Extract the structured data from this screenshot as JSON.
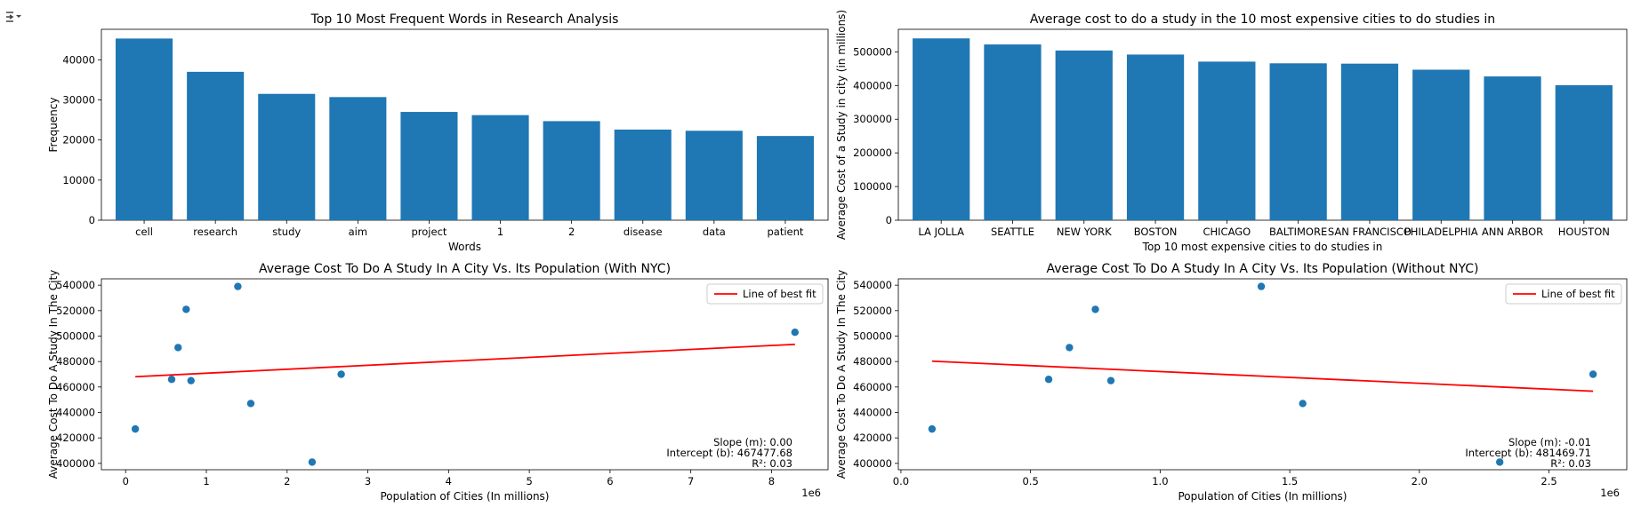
{
  "toolbar": {
    "icon": "output-toggle-icon"
  },
  "chart_data": [
    {
      "type": "bar",
      "title": "Top 10 Most Frequent Words in Research Analysis",
      "xlabel": "Words",
      "ylabel": "Frequency",
      "categories": [
        "cell",
        "research",
        "study",
        "aim",
        "project",
        "1",
        "2",
        "disease",
        "data",
        "patient"
      ],
      "values": [
        45300,
        37000,
        31500,
        30700,
        27000,
        26200,
        24700,
        22600,
        22300,
        21000
      ],
      "ylim": [
        0,
        47600
      ],
      "yticks": [
        0,
        10000,
        20000,
        30000,
        40000
      ],
      "color": "#1f77b4"
    },
    {
      "type": "bar",
      "title": "Average cost to do a study in the 10 most expensive cities to do studies in",
      "xlabel": "Top 10 most expensive cities to do studies in",
      "ylabel": "Average Cost of a Study in city (in millions)",
      "categories": [
        "LA JOLLA",
        "SEATTLE",
        "NEW YORK",
        "BOSTON",
        "CHICAGO",
        "BALTIMORE",
        "SAN FRANCISCO",
        "PHILADELPHIA",
        "ANN ARBOR",
        "HOUSTON"
      ],
      "values": [
        540000,
        522000,
        504000,
        492000,
        471000,
        466000,
        465000,
        447000,
        427000,
        401000
      ],
      "ylim": [
        0,
        567000
      ],
      "yticks": [
        0,
        100000,
        200000,
        300000,
        400000,
        500000
      ],
      "color": "#1f77b4"
    },
    {
      "type": "scatter",
      "title": "Average Cost To Do A Study In A City Vs. Its Population (With NYC)",
      "xlabel": "Population of Cities (In millions)",
      "ylabel": "Average Cost To Do A Study In The City",
      "x_offset_label": "1e6",
      "points": [
        {
          "x": 0.12,
          "y": 427000
        },
        {
          "x": 0.57,
          "y": 466000
        },
        {
          "x": 0.65,
          "y": 491000
        },
        {
          "x": 0.75,
          "y": 521000
        },
        {
          "x": 0.81,
          "y": 465000
        },
        {
          "x": 1.39,
          "y": 539000
        },
        {
          "x": 1.55,
          "y": 447000
        },
        {
          "x": 2.31,
          "y": 401000
        },
        {
          "x": 2.67,
          "y": 470000
        },
        {
          "x": 8.29,
          "y": 503000
        }
      ],
      "fit_line": {
        "x": [
          0.12,
          8.29
        ],
        "y": [
          468100,
          493500
        ]
      },
      "xlim": [
        -0.3,
        8.7
      ],
      "ylim": [
        395000,
        545000
      ],
      "xticks": [
        0,
        1,
        2,
        3,
        4,
        5,
        6,
        7,
        8
      ],
      "yticks": [
        400000,
        420000,
        440000,
        460000,
        480000,
        500000,
        520000,
        540000
      ],
      "legend": {
        "label": "Line of best fit",
        "placement": "top-right"
      },
      "annotations": [
        "Slope (m): 0.00",
        "Intercept (b): 467477.68",
        "R²: 0.03"
      ],
      "point_color": "#1f77b4",
      "line_color": "#ff0000"
    },
    {
      "type": "scatter",
      "title": "Average Cost To Do A Study In A City Vs. Its Population (Without NYC)",
      "xlabel": "Population of Cities (In millions)",
      "ylabel": "Average Cost To Do A Study In The City",
      "x_offset_label": "1e6",
      "points": [
        {
          "x": 0.12,
          "y": 427000
        },
        {
          "x": 0.57,
          "y": 466000
        },
        {
          "x": 0.65,
          "y": 491000
        },
        {
          "x": 0.75,
          "y": 521000
        },
        {
          "x": 0.81,
          "y": 465000
        },
        {
          "x": 1.39,
          "y": 539000
        },
        {
          "x": 1.55,
          "y": 447000
        },
        {
          "x": 2.31,
          "y": 401000
        },
        {
          "x": 2.67,
          "y": 470000
        }
      ],
      "fit_line": {
        "x": [
          0.12,
          2.67
        ],
        "y": [
          480300,
          456700
        ]
      },
      "xlim": [
        -0.01,
        2.8
      ],
      "ylim": [
        395000,
        545000
      ],
      "xticks": [
        0.0,
        0.5,
        1.0,
        1.5,
        2.0,
        2.5
      ],
      "yticks": [
        400000,
        420000,
        440000,
        460000,
        480000,
        500000,
        520000,
        540000
      ],
      "legend": {
        "label": "Line of best fit",
        "placement": "top-right"
      },
      "annotations": [
        "Slope (m): -0.01",
        "Intercept (b): 481469.71",
        "R²: 0.03"
      ],
      "point_color": "#1f77b4",
      "line_color": "#ff0000"
    }
  ]
}
